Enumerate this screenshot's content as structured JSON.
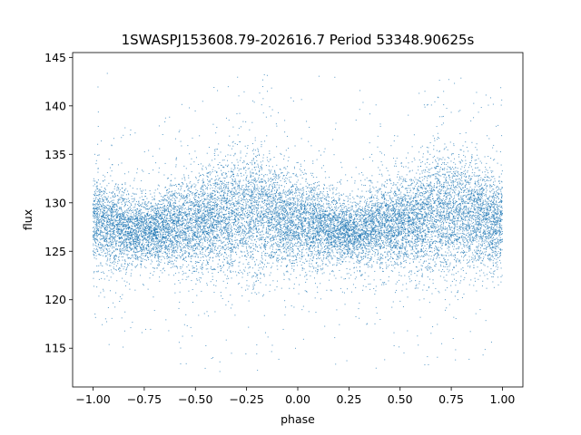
{
  "chart_data": {
    "type": "scatter",
    "title": "1SWASPJ153608.79-202616.7 Period 53348.90625s",
    "xlabel": "phase",
    "ylabel": "flux",
    "xlim": [
      -1.1,
      1.1
    ],
    "ylim": [
      111,
      145.5
    ],
    "xticks": [
      -1.0,
      -0.75,
      -0.5,
      -0.25,
      0.0,
      0.25,
      0.5,
      0.75,
      1.0
    ],
    "xtick_labels": [
      "−1.00",
      "−0.75",
      "−0.50",
      "−0.25",
      "0.00",
      "0.25",
      "0.50",
      "0.75",
      "1.00"
    ],
    "yticks": [
      115,
      120,
      125,
      130,
      135,
      140,
      145
    ],
    "ytick_labels": [
      "115",
      "120",
      "125",
      "130",
      "135",
      "140",
      "145"
    ],
    "grid": false,
    "legend": "none",
    "series": [
      {
        "color": "#1f77b4",
        "phase_range": [
          -1.0,
          1.0
        ],
        "flux_range": [
          112.5,
          143.5
        ],
        "median_profile": {
          "phase": [
            -1.0,
            -0.75,
            -0.5,
            -0.25,
            0.0,
            0.25,
            0.5,
            0.75,
            1.0
          ],
          "flux": [
            128.0,
            127.0,
            128.0,
            129.0,
            128.0,
            127.0,
            128.0,
            129.0,
            128.0
          ]
        }
      }
    ]
  }
}
